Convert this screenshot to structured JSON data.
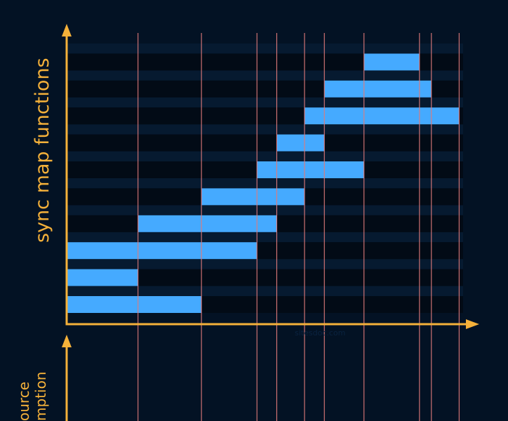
{
  "top_axis_label": "sync map functions",
  "bottom_axis_label_lines": [
    "ource",
    "mption"
  ],
  "watermark": "sitesdoc.com",
  "colors": {
    "background": "#031224",
    "lane_dark": "#020b16",
    "lane_light": "#061a30",
    "bar": "#45aaff",
    "vline": "#e07a7a",
    "axis": "#f5b13a"
  },
  "chart_data": {
    "type": "gantt",
    "time_markers": [
      0,
      9,
      17,
      24,
      26.5,
      30,
      32.5,
      37.5,
      44.5,
      46,
      49.5
    ],
    "time_range": [
      0,
      50
    ],
    "rows": [
      {
        "start": 0,
        "end": 17
      },
      {
        "start": 0,
        "end": 9
      },
      {
        "start": 0,
        "end": 24
      },
      {
        "start": 9,
        "end": 26.5
      },
      {
        "start": 17,
        "end": 30
      },
      {
        "start": 24,
        "end": 37.5
      },
      {
        "start": 26.5,
        "end": 32.5
      },
      {
        "start": 30,
        "end": 49.5
      },
      {
        "start": 32.5,
        "end": 46
      },
      {
        "start": 37.5,
        "end": 44.5
      }
    ]
  }
}
